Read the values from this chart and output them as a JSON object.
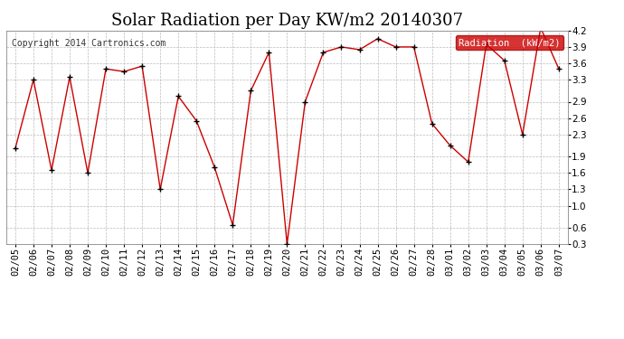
{
  "title": "Solar Radiation per Day KW/m2 20140307",
  "copyright": "Copyright 2014 Cartronics.com",
  "legend_label": "Radiation  (kW/m2)",
  "dates": [
    "02/05",
    "02/06",
    "02/07",
    "02/08",
    "02/09",
    "02/10",
    "02/11",
    "02/12",
    "02/13",
    "02/14",
    "02/15",
    "02/16",
    "02/17",
    "02/18",
    "02/19",
    "02/20",
    "02/21",
    "02/22",
    "02/23",
    "02/24",
    "02/25",
    "02/26",
    "02/27",
    "02/28",
    "03/01",
    "03/02",
    "03/03",
    "03/04",
    "03/05",
    "03/06",
    "03/07"
  ],
  "values": [
    2.05,
    3.3,
    1.65,
    3.35,
    1.6,
    3.5,
    3.45,
    3.55,
    1.3,
    3.0,
    2.55,
    1.7,
    0.65,
    3.1,
    3.8,
    0.3,
    2.9,
    3.8,
    3.9,
    3.85,
    4.05,
    3.9,
    3.9,
    2.5,
    2.1,
    1.8,
    3.95,
    3.65,
    2.3,
    4.25,
    3.5
  ],
  "ylim": [
    0.3,
    4.2
  ],
  "yticks": [
    0.3,
    0.6,
    1.0,
    1.3,
    1.6,
    1.9,
    2.3,
    2.6,
    2.9,
    3.3,
    3.6,
    3.9,
    4.2
  ],
  "line_color": "#cc0000",
  "marker_color": "#000000",
  "bg_color": "#ffffff",
  "plot_bg_color": "#ffffff",
  "grid_color": "#bbbbbb",
  "title_fontsize": 13,
  "tick_fontsize": 7.5,
  "legend_bg": "#cc0000",
  "legend_text_color": "#ffffff",
  "copyright_color": "#333333"
}
